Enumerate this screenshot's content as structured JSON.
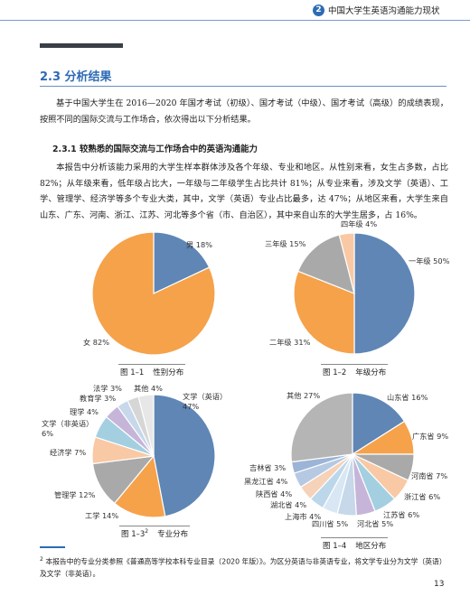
{
  "header": {
    "chapter_number": "2",
    "title": "中国大学生英语沟通能力现状"
  },
  "section": {
    "title": "2.3 分析结果"
  },
  "intro_paragraph": "基于中国大学生在 2016—2020 年国才考试（初级）、国才考试（中级）、国才考试（高级）的成绩表现，按照不同的国际交流与工作场合，依次得出以下分析结果。",
  "subsection": {
    "title": "2.3.1 较熟悉的国际交流与工作场合中的英语沟通能力",
    "paragraph": "本报告中分析该能力采用的大学生样本群体涉及各个年级、专业和地区。从性别来看，女生占多数，占比 82%；从年级来看，低年级占比大，一年级与二年级学生占比共计 81%；从专业来看，涉及文学（英语）、工学、管理学、经济学等多个专业大类，其中，文学（英语）专业占比最多，达 47%；从地区来看，大学生来自山东、广东、河南、浙江、江苏、河北等多个省（市、自治区），其中来自山东的大学生居多，占 16%。"
  },
  "figures": {
    "fig1": {
      "number": "图 1–1",
      "title": "性别分布"
    },
    "fig2": {
      "number": "图 1–2",
      "title": "年级分布"
    },
    "fig3": {
      "number": "图 1–3",
      "sup": "2",
      "title": "专业分布"
    },
    "fig4": {
      "number": "图 1–4",
      "title": "地区分布"
    }
  },
  "chart_data": [
    {
      "type": "pie",
      "title": "性别分布",
      "categories": [
        "男",
        "女"
      ],
      "values": [
        18,
        82
      ],
      "labels": [
        "男 18%",
        "女 82%"
      ],
      "colors": [
        "#5f86b5",
        "#f5a24b"
      ]
    },
    {
      "type": "pie",
      "title": "年级分布",
      "categories": [
        "一年级",
        "二年级",
        "三年级",
        "四年级"
      ],
      "values": [
        50,
        31,
        15,
        4
      ],
      "labels": [
        "一年级 50%",
        "二年级 31%",
        "三年级 15%",
        "四年级 4%"
      ],
      "colors": [
        "#5f86b5",
        "#f5a24b",
        "#a9a9a9",
        "#f8c9a4"
      ]
    },
    {
      "type": "pie",
      "title": "专业分布",
      "categories": [
        "文学（英语）",
        "工学",
        "管理学",
        "经济学",
        "文学（非英语）",
        "理学",
        "教育学",
        "法学",
        "其他"
      ],
      "values": [
        47,
        14,
        12,
        7,
        6,
        4,
        3,
        3,
        4
      ],
      "labels": [
        "文学（英语）|47%",
        "工学 14%",
        "管理学 12%",
        "经济学 7%",
        "文学（非英语）|6%",
        "理学 4%",
        "教育学 3%",
        "法学 3%",
        "其他 4%"
      ],
      "colors": [
        "#5f86b5",
        "#f5a24b",
        "#a9a9a9",
        "#f8c9a4",
        "#a4cfe0",
        "#c6b5d9",
        "#c6d8ea",
        "#d6d6d6",
        "#e7e7e7"
      ]
    },
    {
      "type": "pie",
      "title": "地区分布",
      "categories": [
        "山东省",
        "广东省",
        "河南省",
        "浙江省",
        "江苏省",
        "河北省",
        "四川省",
        "上海市",
        "湖北省",
        "陕西省",
        "黑龙江省",
        "吉林省",
        "其他"
      ],
      "values": [
        16,
        9,
        7,
        6,
        6,
        5,
        5,
        4,
        4,
        4,
        4,
        3,
        27
      ],
      "labels": [
        "山东省 16%",
        "广东省 9%",
        "河南省 7%",
        "浙江省 6%",
        "江苏省 6%",
        "河北省 5%",
        "四川省 5%",
        "上海市 4%",
        "湖北省 4%",
        "陕西省 4%",
        "黑龙江省 4%",
        "吉林省 3%",
        "其他 27%"
      ],
      "colors": [
        "#5f86b5",
        "#f5a24b",
        "#a9a9a9",
        "#f8c9a4",
        "#a4cfe0",
        "#c6b5d9",
        "#c6d8ea",
        "#d8e7f3",
        "#bcd7ea",
        "#f5d2b8",
        "#b6c9e2",
        "#9cb4d6",
        "#b5b5b5"
      ]
    }
  ],
  "footnote": {
    "marker": "2",
    "text": "本报告中的专业分类参照《普通高等学校本科专业目录（2020 年版）》。为区分英语与非英语专业，将文学专业分为文学（英语）及文学（非英语）。"
  },
  "page_number": "13"
}
